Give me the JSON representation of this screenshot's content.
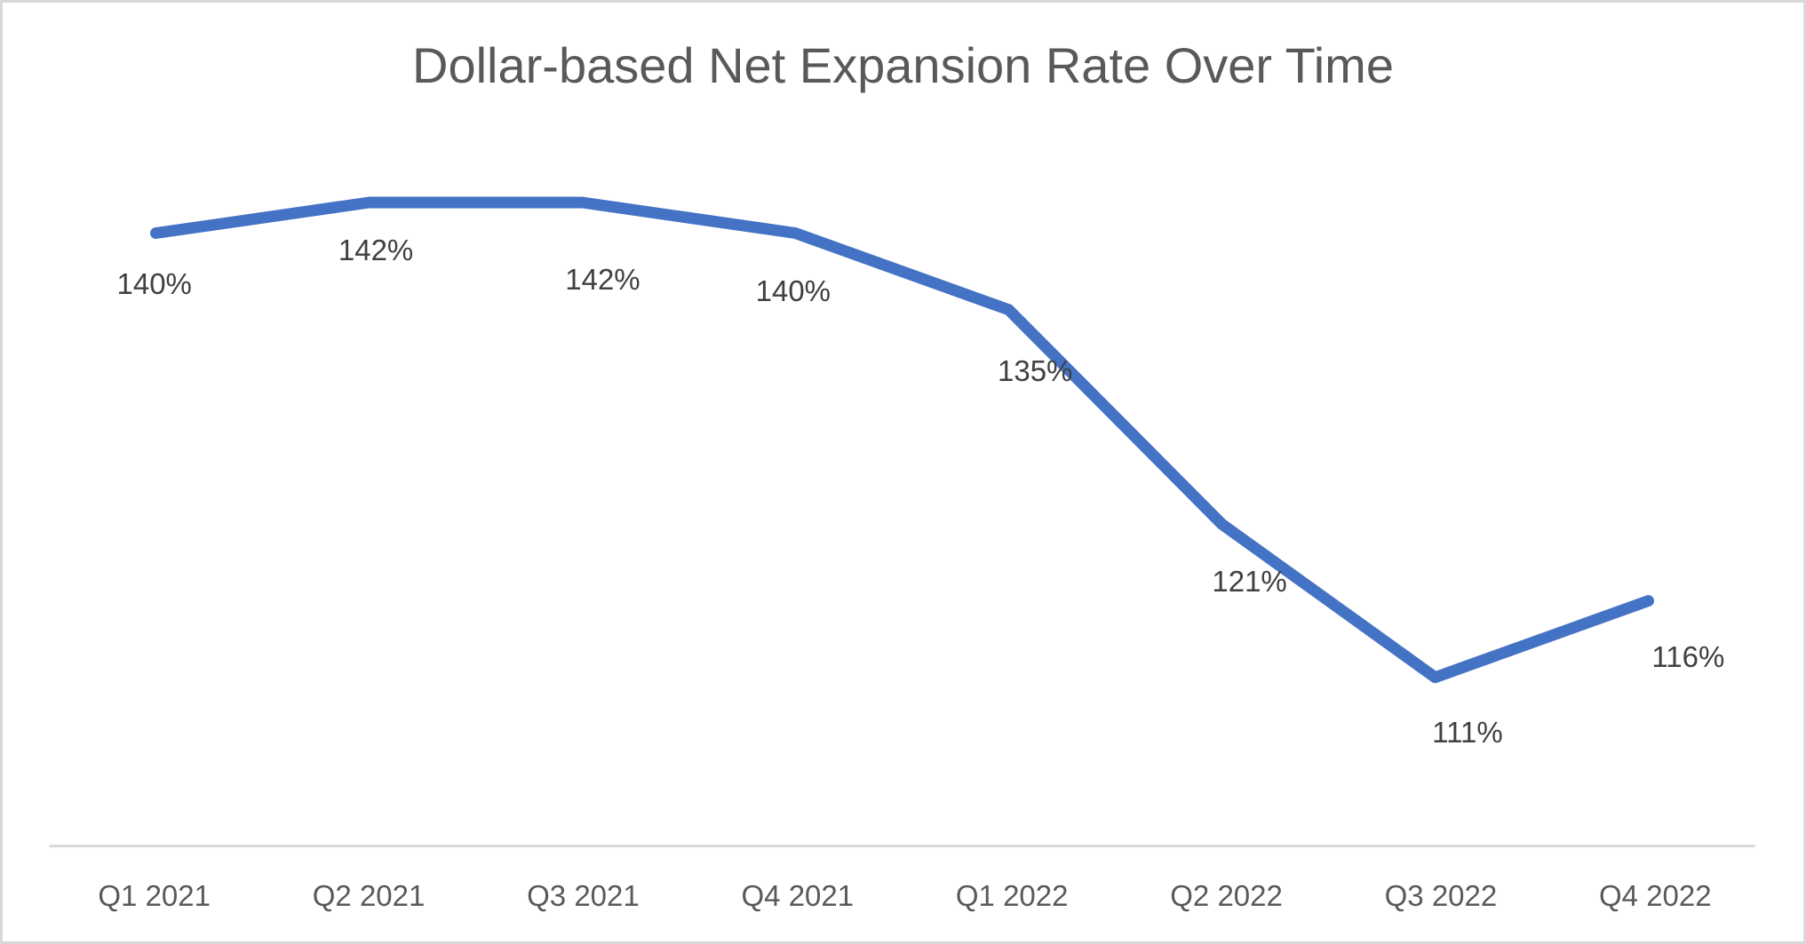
{
  "page": {
    "background": "#ffffff",
    "border_color": "#d9d9d9"
  },
  "chart_data": {
    "type": "line",
    "title": "Dollar-based Net Expansion Rate Over Time",
    "categories": [
      "Q1 2021",
      "Q2 2021",
      "Q3 2021",
      "Q4 2021",
      "Q1 2022",
      "Q2 2022",
      "Q3 2022",
      "Q4 2022"
    ],
    "values": [
      140,
      142,
      142,
      140,
      135,
      121,
      111,
      116
    ],
    "data_labels": [
      "140%",
      "142%",
      "142%",
      "140%",
      "135%",
      "121%",
      "111%",
      "116%"
    ],
    "xlabel": "",
    "ylabel": "",
    "ylim": [
      100,
      150
    ],
    "grid": false,
    "legend": false,
    "line_color": "#4472c4",
    "title_color": "#595959",
    "data_label_color": "#404040",
    "tick_label_color": "#595959",
    "axis_line_color": "#d9d9d9"
  }
}
